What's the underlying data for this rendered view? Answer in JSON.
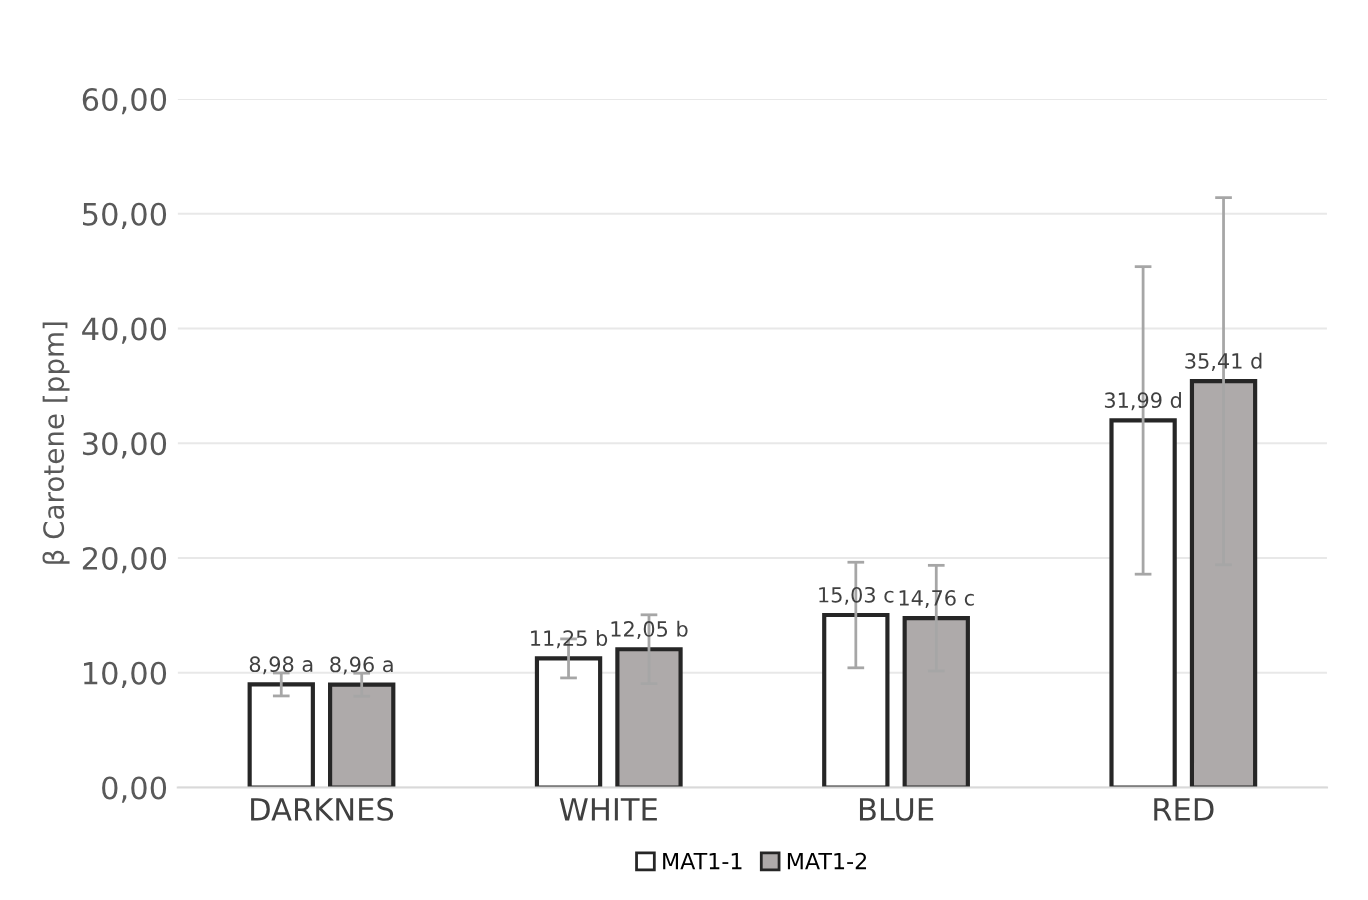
{
  "chart_data": {
    "type": "bar",
    "ylabel": "β Carotene [ppm]",
    "categories": [
      "DARKNES",
      "WHITE",
      "BLUE",
      "RED"
    ],
    "series": [
      {
        "name": "MAT1-1",
        "color": "#ffffff",
        "values": [
          8.98,
          11.25,
          15.03,
          31.99
        ],
        "errors": [
          1.0,
          1.7,
          4.6,
          13.4
        ],
        "value_labels": [
          "8,98 a",
          "11,25 b",
          "15,03 c",
          "31,99 d"
        ]
      },
      {
        "name": "MAT1-2",
        "color": "#aeaaaa",
        "values": [
          8.96,
          12.05,
          14.76,
          35.41
        ],
        "errors": [
          1.0,
          3.0,
          4.6,
          16.0
        ],
        "value_labels": [
          "8,96 a",
          "12,05 b",
          "14,76 c",
          "35,41 d"
        ]
      }
    ],
    "ylim": [
      0,
      60
    ],
    "yticks": [
      {
        "value": 0,
        "label": "0,00"
      },
      {
        "value": 10,
        "label": "10,00"
      },
      {
        "value": 20,
        "label": "20,00"
      },
      {
        "value": 30,
        "label": "30,00"
      },
      {
        "value": 40,
        "label": "40,00"
      },
      {
        "value": 50,
        "label": "50,00"
      },
      {
        "value": 60,
        "label": "60,00"
      }
    ],
    "grid": "y",
    "legend": "bottom"
  }
}
